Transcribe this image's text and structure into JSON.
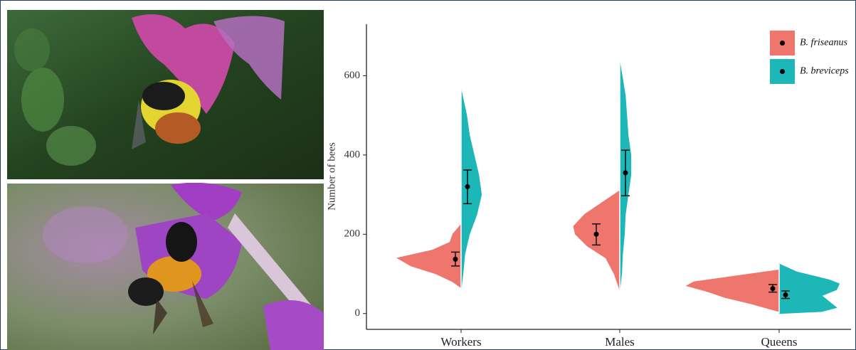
{
  "chart_data": {
    "type": "split-violin",
    "y_label": "Number of bees",
    "categories": [
      "Workers",
      "Males",
      "Queens"
    ],
    "ylim": [
      -40,
      730
    ],
    "yticks": [
      0,
      200,
      400,
      600
    ],
    "legend": "top-right",
    "series": [
      {
        "name": "B. friseanus",
        "color": "#EF766D",
        "values": [
          137,
          200,
          63
        ],
        "error_low": [
          120,
          173,
          54
        ],
        "error_high": [
          155,
          226,
          73
        ],
        "violins": [
          {
            "y": [
              65,
              80,
              100,
              120,
              140,
              160,
              180,
              200,
              225
            ],
            "density": [
              0,
              0.09,
              0.27,
              0.54,
              0.69,
              0.31,
              0.12,
              0.09,
              0
            ]
          },
          {
            "y": [
              60,
              100,
              140,
              170,
              200,
              220,
              250,
              280,
              310
            ],
            "density": [
              0,
              0.06,
              0.15,
              0.35,
              0.48,
              0.5,
              0.38,
              0.19,
              0
            ]
          },
          {
            "y": [
              5,
              10,
              25,
              40,
              55,
              70,
              80,
              95,
              110
            ],
            "density": [
              0,
              0.08,
              0.31,
              0.58,
              0.77,
              1,
              0.92,
              0.46,
              0
            ]
          }
        ]
      },
      {
        "name": "B. breviceps",
        "color": "#1DB7B7",
        "values": [
          320,
          355,
          47
        ],
        "error_low": [
          277,
          297,
          38
        ],
        "error_high": [
          362,
          412,
          57
        ],
        "violins": [
          {
            "y": [
              60,
              100,
              150,
              200,
              250,
              300,
              350,
              400,
              450,
              500,
              565
            ],
            "density": [
              0,
              0.02,
              0.04,
              0.09,
              0.17,
              0.22,
              0.19,
              0.14,
              0.09,
              0.06,
              0
            ]
          },
          {
            "y": [
              60,
              100,
              150,
              200,
              250,
              300,
              350,
              400,
              450,
              550,
              635
            ],
            "density": [
              0,
              0.02,
              0.03,
              0.05,
              0.06,
              0.09,
              0.12,
              0.12,
              0.09,
              0.06,
              0
            ]
          },
          {
            "y": [
              0,
              5,
              15,
              30,
              45,
              60,
              75,
              85,
              105,
              125
            ],
            "density": [
              0,
              0.46,
              0.62,
              0.54,
              0.46,
              0.62,
              0.65,
              0.54,
              0.19,
              0
            ]
          }
        ]
      }
    ]
  }
}
